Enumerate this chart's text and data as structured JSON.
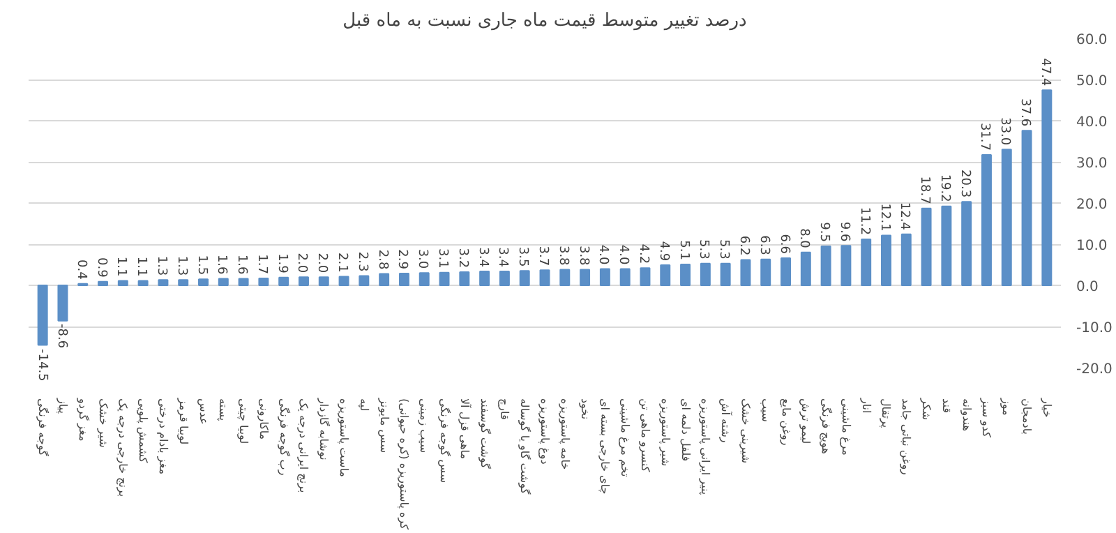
{
  "chart_data": {
    "type": "bar",
    "title": "درصد تغییر متوسط قیمت ماه جاری نسبت به ماه قبل",
    "categories": [
      "گوجه فرنگی",
      "پیاز",
      "مغز گردو",
      "شیر خشک",
      "برنج خارجی درجه یک",
      "کشمش پلویی",
      "مغز بادام درختی",
      "لوبیا قرمز",
      "عدس",
      "پسته",
      "لوبیا چیتی",
      "ماکارونی",
      "رب گوجه فرنگی",
      "برنج ایرانی درجه یک",
      "نوشابه گازدار",
      "ماست پاستوریزه",
      "لپه",
      "سس مایونز",
      "کره پاستوریزه (کره حیوانی)",
      "سیب زمینی",
      "سس گوجه فرنگی",
      "ماهی قزل آلا",
      "گوشت گوسفند",
      "قارچ",
      "گوشت گاو یا گوساله",
      "دوغ پاستوریزه",
      "خامه پاستوریزه",
      "نخود",
      "چای خارجی بسته ای",
      "تخم مرغ ماشینی",
      "کنسرو ماهی تن",
      "شیر پاستوریزه",
      "فلفل دلمه ای",
      "پنیر ایرانی پاستوریزه",
      "رشته آش",
      "شیرینی خشک",
      "سیب",
      "روغن مایع",
      "لیمو ترش",
      "هویج فرنگی",
      "مرغ ماشینی",
      "انار",
      "پرتقال",
      "روغن نباتی جامد",
      "شکر",
      "قند",
      "هندوانه",
      "کدو سبز",
      "موز",
      "بادمجان",
      "خیار"
    ],
    "values": [
      -14.5,
      -8.6,
      0.4,
      0.9,
      1.1,
      1.1,
      1.3,
      1.3,
      1.5,
      1.6,
      1.6,
      1.7,
      1.9,
      2.0,
      2.0,
      2.1,
      2.3,
      2.8,
      2.9,
      3.0,
      3.1,
      3.2,
      3.4,
      3.4,
      3.5,
      3.7,
      3.8,
      3.8,
      4.0,
      4.0,
      4.2,
      4.9,
      5.1,
      5.3,
      5.3,
      6.2,
      6.3,
      6.6,
      8.0,
      9.5,
      9.6,
      11.2,
      12.1,
      12.4,
      18.7,
      19.2,
      20.3,
      31.7,
      33.0,
      37.6,
      47.4
    ],
    "color": "#5b8fc7",
    "ylim": [
      -20,
      60
    ],
    "yticks": [
      {
        "value": -20,
        "label": "-20.0"
      },
      {
        "value": -10,
        "label": "-10.0"
      },
      {
        "value": 0,
        "label": "0.0"
      },
      {
        "value": 10,
        "label": "10.0"
      },
      {
        "value": 20,
        "label": "20.0"
      },
      {
        "value": 30,
        "label": "30.0"
      },
      {
        "value": 40,
        "label": "40.0"
      },
      {
        "value": 50,
        "label": "50.0"
      },
      {
        "value": 60,
        "label": "60.0"
      }
    ],
    "grid": "y",
    "value_labels": [
      "-14.5",
      "-8.6",
      "0.4",
      "0.9",
      "1.1",
      "1.1",
      "1.3",
      "1.3",
      "1.5",
      "1.6",
      "1.6",
      "1.7",
      "1.9",
      "2.0",
      "2.0",
      "2.1",
      "2.3",
      "2.8",
      "2.9",
      "3.0",
      "3.1",
      "3.2",
      "3.4",
      "3.4",
      "3.5",
      "3.7",
      "3.8",
      "3.8",
      "4.0",
      "4.0",
      "4.2",
      "4.9",
      "5.1",
      "5.3",
      "5.3",
      "6.2",
      "6.3",
      "6.6",
      "8.0",
      "9.5",
      "9.6",
      "11.2",
      "12.1",
      "12.4",
      "18.7",
      "19.2",
      "20.3",
      "31.7",
      "33.0",
      "37.6",
      "47.4"
    ]
  }
}
